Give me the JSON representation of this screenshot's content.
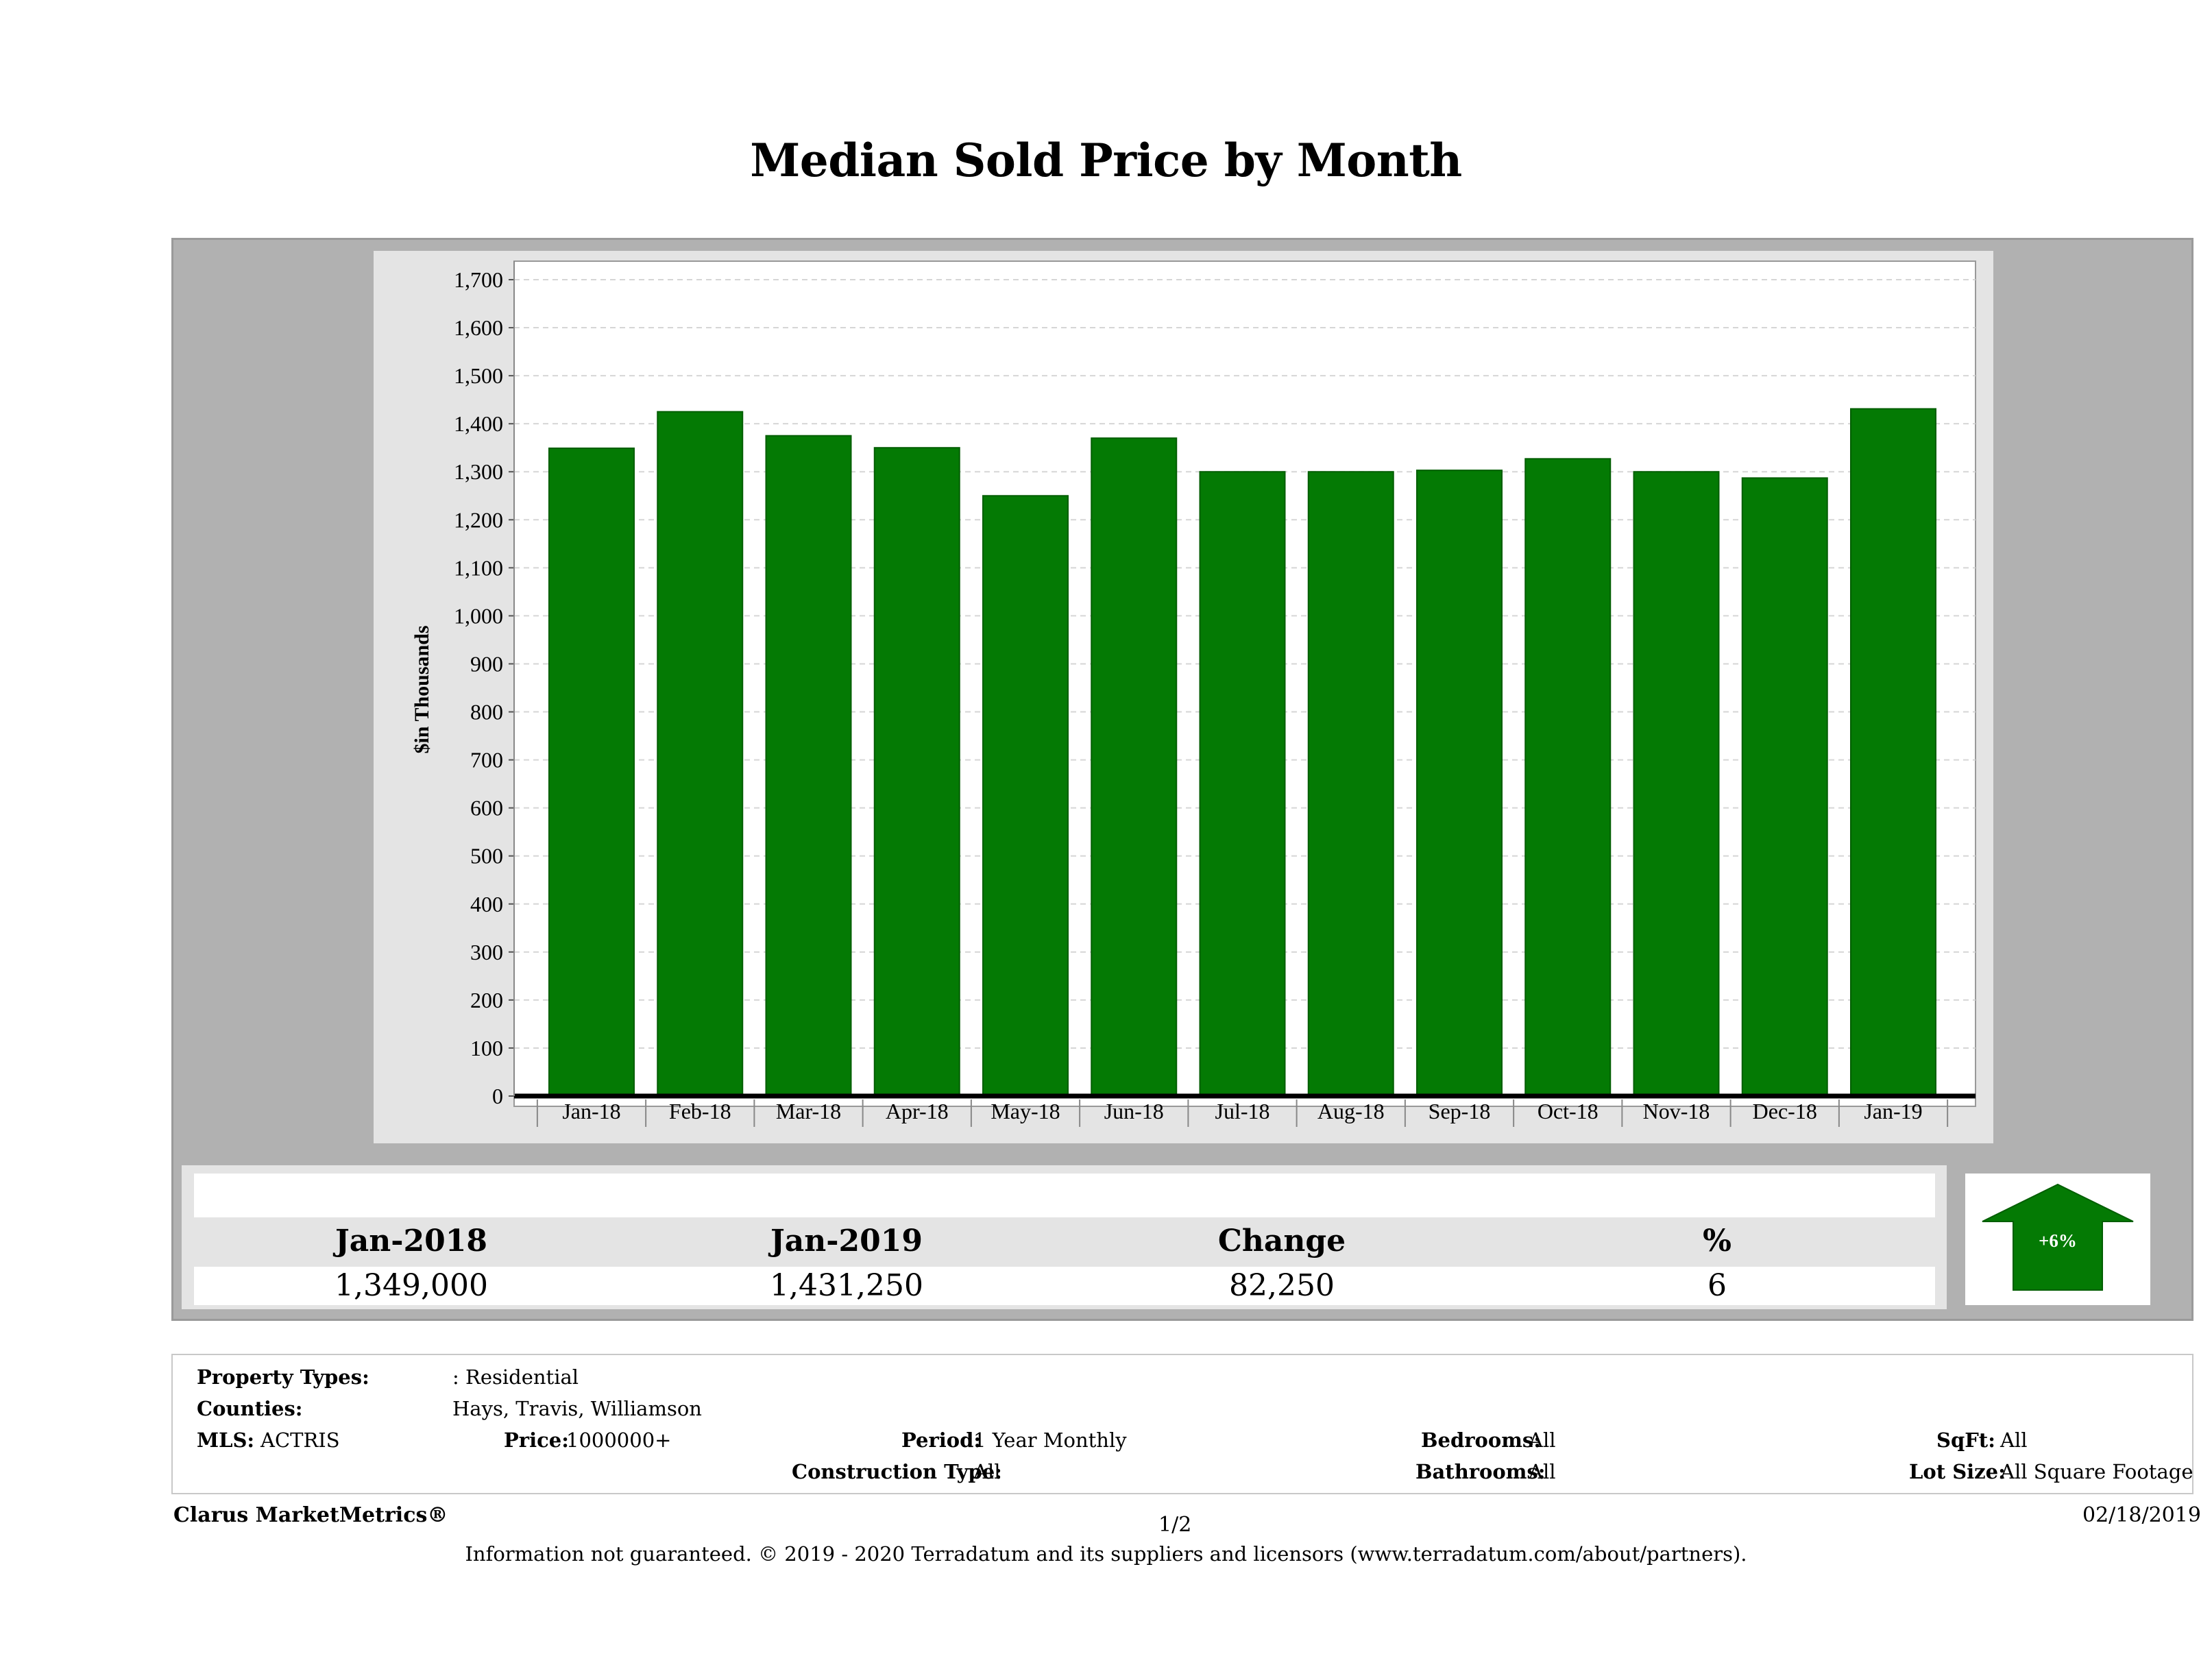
{
  "title": "Median Sold Price by Month",
  "chart_data": {
    "type": "bar",
    "ylabel": "$in Thousands",
    "ylim": [
      0,
      1700
    ],
    "yticks": [
      0,
      100,
      200,
      300,
      400,
      500,
      600,
      700,
      800,
      900,
      1000,
      1100,
      1200,
      1300,
      1400,
      1500,
      1600,
      1700
    ],
    "categories": [
      "Jan-18",
      "Feb-18",
      "Mar-18",
      "Apr-18",
      "May-18",
      "Jun-18",
      "Jul-18",
      "Aug-18",
      "Sep-18",
      "Oct-18",
      "Nov-18",
      "Dec-18",
      "Jan-19"
    ],
    "values": [
      1349,
      1425,
      1375,
      1350,
      1250,
      1370,
      1300,
      1300,
      1303,
      1327,
      1300,
      1287,
      1431
    ],
    "bar_color": "#047a04",
    "grid": true
  },
  "summary": {
    "headers": [
      "Jan-2018",
      "Jan-2019",
      "Change",
      "%"
    ],
    "values": [
      "1,349,000",
      "1,431,250",
      "82,250",
      "6"
    ],
    "badge": "+6%",
    "badge_color": "#047a04"
  },
  "filters": {
    "property_types_label": "Property Types:",
    "property_types_value": ": Residential",
    "counties_label": "Counties:",
    "counties_value": "Hays, Travis, Williamson",
    "mls_label": "MLS:",
    "mls_value": "ACTRIS",
    "price_label": "Price:",
    "price_value": "1000000+",
    "period_label": "Period:",
    "period_value": "1 Year Monthly",
    "construction_label": "Construction Type:",
    "construction_value": "All",
    "bedrooms_label": "Bedrooms:",
    "bedrooms_value": "All",
    "bathrooms_label": "Bathrooms:",
    "bathrooms_value": "All",
    "sqft_label": "SqFt:",
    "sqft_value": "All",
    "lotsize_label": "Lot Size:",
    "lotsize_value": "All Square Footage"
  },
  "footer": {
    "brand": "Clarus MarketMetrics®",
    "page": "1/2",
    "date": "02/18/2019",
    "disclaimer": "Information not guaranteed. © 2019 - 2020 Terradatum and its suppliers and licensors (www.terradatum.com/about/partners)."
  }
}
